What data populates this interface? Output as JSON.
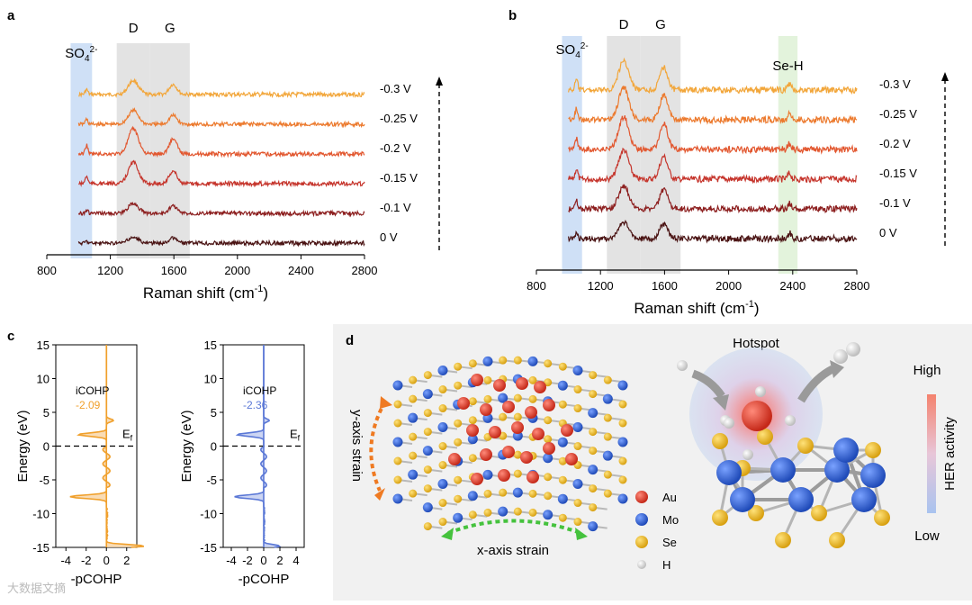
{
  "panel_labels": {
    "a": "a",
    "b": "b",
    "c": "c",
    "d": "d"
  },
  "watermark": "大数据文摘",
  "chart_data": [
    {
      "id": "a",
      "type": "line",
      "xlabel": "Raman  shift (cm",
      "xlabel_sup": "-1",
      "xlabel_end": ")",
      "xlim": [
        800,
        2800
      ],
      "xticks": [
        "800",
        "1200",
        "1600",
        "2000",
        "2400",
        "2800"
      ],
      "bands": [
        {
          "label": "SO",
          "sub": "4",
          "sup": "2-",
          "from": 950,
          "to": 1085,
          "color": "#cfe0f6"
        },
        {
          "label": "D",
          "from": 1240,
          "to": 1450,
          "color": "#e3e3e3"
        },
        {
          "label": "G",
          "from": 1450,
          "to": 1700,
          "color": "#e3e3e3"
        }
      ],
      "series": [
        {
          "name": "-0.3  V",
          "color": "#f2a63a",
          "d": 0.55,
          "g": 0.4
        },
        {
          "name": "-0.25 V",
          "color": "#ec7a2e",
          "d": 0.55,
          "g": 0.35
        },
        {
          "name": "-0.2  V",
          "color": "#e2572f",
          "d": 1.0,
          "g": 0.6
        },
        {
          "name": "-0.15 V",
          "color": "#c5332a",
          "d": 0.85,
          "g": 0.5
        },
        {
          "name": "-0.1  V",
          "color": "#8c1e1e",
          "d": 0.4,
          "g": 0.3
        },
        {
          "name": "0  V",
          "color": "#4a1313",
          "d": 0.22,
          "g": 0.2
        }
      ]
    },
    {
      "id": "b",
      "type": "line",
      "xlabel": "Raman  shift (cm",
      "xlabel_sup": "-1",
      "xlabel_end": ")",
      "xlim": [
        800,
        2800
      ],
      "xticks": [
        "800",
        "1200",
        "1600",
        "2000",
        "2400",
        "2800"
      ],
      "bands": [
        {
          "label": "SO",
          "sub": "4",
          "sup": "2-",
          "from": 960,
          "to": 1085,
          "color": "#cfe0f6"
        },
        {
          "label": "D",
          "from": 1240,
          "to": 1450,
          "color": "#e3e3e3"
        },
        {
          "label": "G",
          "from": 1450,
          "to": 1700,
          "color": "#e3e3e3"
        },
        {
          "label": "Se-H",
          "from": 2310,
          "to": 2430,
          "color": "#e3f3dc"
        }
      ],
      "series": [
        {
          "name": "-0.3  V",
          "color": "#f2a63a",
          "d": 0.9,
          "g": 0.7
        },
        {
          "name": "-0.25 V",
          "color": "#ec7a2e",
          "d": 1.0,
          "g": 0.75
        },
        {
          "name": "-0.2  V",
          "color": "#e2572f",
          "d": 1.0,
          "g": 0.8
        },
        {
          "name": "-0.15 V",
          "color": "#c5332a",
          "d": 0.9,
          "g": 0.7
        },
        {
          "name": "-0.1  V",
          "color": "#8c1e1e",
          "d": 0.7,
          "g": 0.6
        },
        {
          "name": "0  V",
          "color": "#4a1313",
          "d": 0.5,
          "g": 0.45
        }
      ]
    },
    {
      "id": "c1",
      "type": "line",
      "xlabel": "-pCOHP",
      "ylabel": "Energy (eV)",
      "xlim": [
        -5,
        3
      ],
      "ylim": [
        -15,
        15
      ],
      "xticks": [
        "-4",
        "-2",
        "0",
        "2"
      ],
      "yticks": [
        "15",
        "10",
        "5",
        "0",
        "-5",
        "-10",
        "-15"
      ],
      "color": "#f0a02c",
      "fill": "#f7d3a2",
      "annotation": "iCOHP",
      "annotation_value": "-2.09",
      "fermi_label": "E",
      "fermi_sub": "f"
    },
    {
      "id": "c2",
      "type": "line",
      "xlabel": "-pCOHP",
      "ylabel": "Energy (eV)",
      "xlim": [
        -5,
        5
      ],
      "ylim": [
        -15,
        15
      ],
      "xticks": [
        "-4",
        "-2",
        "0",
        "2",
        "4"
      ],
      "yticks": [
        "15",
        "10",
        "5",
        "0",
        "-5",
        "-10",
        "-15"
      ],
      "color": "#5b78d6",
      "fill": "#bfcbf0",
      "annotation": "iCOHP",
      "annotation_value": "-2.36",
      "fermi_label": "E",
      "fermi_sub": "f"
    }
  ],
  "panel_d": {
    "yaxis_label": "y-axis strain",
    "xaxis_label": "x-axis strain",
    "hotspot_label": "Hotspot",
    "legend": [
      {
        "label": "Au",
        "color": "#e0392b"
      },
      {
        "label": "Mo",
        "color": "#2e63d6"
      },
      {
        "label": "Se",
        "color": "#f1b721"
      },
      {
        "label": "H",
        "color": "#e3e3e3"
      }
    ],
    "colorbar": {
      "high": "High",
      "low": "Low",
      "title": "HER activity"
    }
  }
}
